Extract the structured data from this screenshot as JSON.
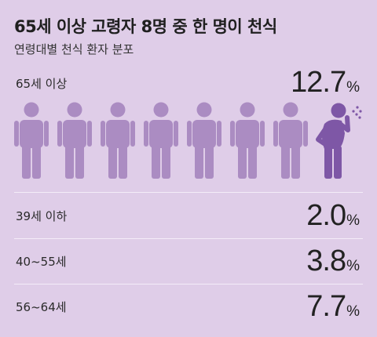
{
  "title": "65세 이상 고령자 8명 중 한 명이 천식",
  "subtitle": "연령대별 천식 환자 분포",
  "colors": {
    "background": "#dfcde8",
    "figure_default": "#ab8cc2",
    "figure_highlight": "#7e57a6",
    "divider": "#f4ecf8"
  },
  "icons": {
    "person": "person-icon",
    "coughing_person": "coughing-person-icon"
  },
  "chart_data": {
    "type": "table",
    "title": "65세 이상 고령자 8명 중 한 명이 천식",
    "subtitle": "연령대별 천식 환자 분포",
    "unit": "%",
    "categories": [
      "65세 이상",
      "39세 이하",
      "40~55세",
      "56~64세"
    ],
    "values": [
      12.7,
      2.0,
      3.8,
      7.7
    ],
    "rows": [
      {
        "label": "65세 이상",
        "value": "12.7",
        "unit": "%"
      },
      {
        "label": "39세 이하",
        "value": "2.0",
        "unit": "%"
      },
      {
        "label": "40~55세",
        "value": "3.8",
        "unit": "%"
      },
      {
        "label": "56~64세",
        "value": "7.7",
        "unit": "%"
      }
    ],
    "pictogram": {
      "total": 8,
      "highlighted": 1
    }
  }
}
